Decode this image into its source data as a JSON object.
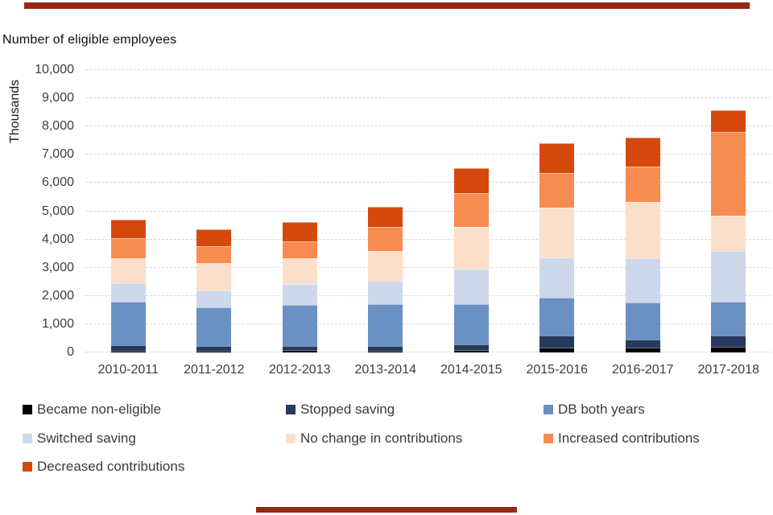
{
  "page": {
    "background": "#ffffff",
    "accent_rule_color": "#952713"
  },
  "chart_data": {
    "type": "bar",
    "stacked": true,
    "title": "Number of eligible employees",
    "ylabel": "Thousands",
    "xlabel": "",
    "categories": [
      "2010-2011",
      "2011-2012",
      "2012-2013",
      "2013-2014",
      "2014-2015",
      "2015-2016",
      "2016-2017",
      "2017-2018"
    ],
    "series": [
      {
        "name": "Became non-eligible",
        "color": "#000000",
        "values": [
          60,
          50,
          75,
          70,
          100,
          170,
          160,
          190
        ]
      },
      {
        "name": "Stopped saving",
        "color": "#253a5e",
        "values": [
          185,
          165,
          160,
          165,
          180,
          440,
          310,
          395
        ]
      },
      {
        "name": "DB both years",
        "color": "#6b91c4",
        "values": [
          1540,
          1370,
          1435,
          1480,
          1435,
          1325,
          1295,
          1205
        ]
      },
      {
        "name": "Switched saving",
        "color": "#cdd9ea",
        "values": [
          660,
          600,
          745,
          835,
          1240,
          1415,
          1565,
          1800
        ]
      },
      {
        "name": "No change in contributions",
        "color": "#fbdfcb",
        "values": [
          900,
          970,
          905,
          1035,
          1480,
          1775,
          1985,
          1240
        ]
      },
      {
        "name": "Increased contributions",
        "color": "#f68c4f",
        "values": [
          705,
          605,
          620,
          870,
          1205,
          1220,
          1265,
          2970
        ]
      },
      {
        "name": "Decreased contributions",
        "color": "#d5490d",
        "values": [
          650,
          595,
          690,
          695,
          890,
          1065,
          1040,
          770
        ]
      }
    ],
    "totals": [
      4700,
      4355,
      4630,
      5150,
      6530,
      7410,
      7620,
      8570
    ],
    "ylim": [
      0,
      10000
    ],
    "ytick_step": 1000,
    "ytick_labels": [
      "0",
      "1,000",
      "2,000",
      "3,000",
      "4,000",
      "5,000",
      "6,000",
      "7,000",
      "8,000",
      "9,000",
      "10,000"
    ],
    "grid": "horizontal-dashed",
    "gridline_color": "#d9d9d9",
    "legend_position": "bottom"
  }
}
